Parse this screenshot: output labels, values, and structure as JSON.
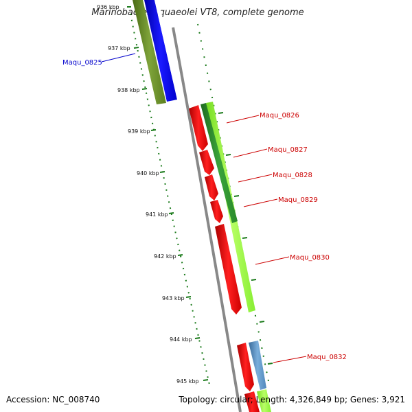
{
  "title": "Marinobacter aquaeolei VT8, complete genome",
  "footer": {
    "accession": "Accession: NC_008740",
    "summary": "Topology: circular; Length: 4,326,849 bp; Genes: 3,921"
  },
  "scale": {
    "tick_labels": [
      "936 kbp",
      "937 kbp",
      "938 kbp",
      "939 kbp",
      "940 kbp",
      "941 kbp",
      "942 kbp",
      "943 kbp",
      "944 kbp",
      "945 kbp"
    ]
  },
  "genes": [
    {
      "label": "Maqu_0825",
      "color": "#0000cc"
    },
    {
      "label": "Maqu_0826",
      "color": "#cc0000"
    },
    {
      "label": "Maqu_0827",
      "color": "#cc0000"
    },
    {
      "label": "Maqu_0828",
      "color": "#cc0000"
    },
    {
      "label": "Maqu_0829",
      "color": "#cc0000"
    },
    {
      "label": "Maqu_0830",
      "color": "#cc0000"
    },
    {
      "label": "Maqu_0832",
      "color": "#cc0000"
    }
  ],
  "colors": {
    "backbone": "#888888",
    "tick": "#1a7a1a",
    "feature_red": "#ff0000",
    "feature_blue": "#0000ff",
    "feature_olive": "#6b8e23",
    "feature_lime": "#99ff33",
    "feature_darkgreen": "#2e8b2e",
    "feature_steel": "#4f88bb"
  }
}
